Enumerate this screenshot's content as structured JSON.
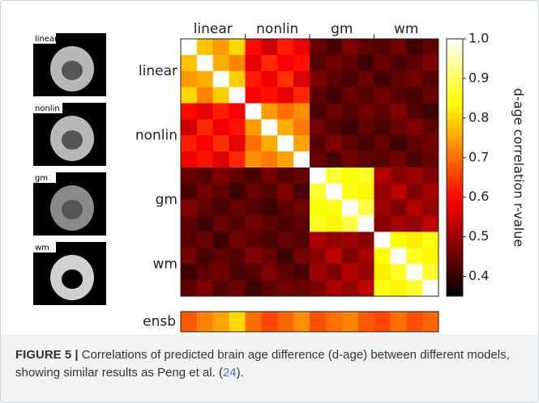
{
  "chart_data": {
    "type": "heatmap",
    "colormap": "hot",
    "group_labels": [
      "linear",
      "nonlin",
      "gm",
      "wm"
    ],
    "matrix": [
      [
        1.0,
        0.78,
        0.74,
        0.8,
        0.6,
        0.55,
        0.62,
        0.58,
        0.45,
        0.42,
        0.47,
        0.44,
        0.43,
        0.46,
        0.41,
        0.44
      ],
      [
        0.78,
        1.0,
        0.76,
        0.72,
        0.57,
        0.63,
        0.59,
        0.61,
        0.43,
        0.46,
        0.44,
        0.41,
        0.45,
        0.42,
        0.44,
        0.47
      ],
      [
        0.74,
        0.76,
        1.0,
        0.79,
        0.62,
        0.58,
        0.64,
        0.56,
        0.47,
        0.44,
        0.42,
        0.45,
        0.41,
        0.44,
        0.46,
        0.43
      ],
      [
        0.8,
        0.72,
        0.79,
        1.0,
        0.59,
        0.61,
        0.57,
        0.63,
        0.44,
        0.41,
        0.45,
        0.43,
        0.46,
        0.43,
        0.42,
        0.45
      ],
      [
        0.6,
        0.57,
        0.62,
        0.59,
        1.0,
        0.74,
        0.7,
        0.73,
        0.42,
        0.45,
        0.43,
        0.46,
        0.44,
        0.47,
        0.43,
        0.41
      ],
      [
        0.55,
        0.63,
        0.58,
        0.61,
        0.74,
        1.0,
        0.76,
        0.71,
        0.46,
        0.43,
        0.41,
        0.44,
        0.42,
        0.45,
        0.47,
        0.44
      ],
      [
        0.62,
        0.59,
        0.64,
        0.57,
        0.7,
        0.76,
        1.0,
        0.75,
        0.43,
        0.47,
        0.44,
        0.42,
        0.45,
        0.41,
        0.44,
        0.46
      ],
      [
        0.58,
        0.61,
        0.56,
        0.63,
        0.73,
        0.71,
        0.75,
        1.0,
        0.45,
        0.42,
        0.46,
        0.44,
        0.43,
        0.46,
        0.42,
        0.45
      ],
      [
        0.45,
        0.43,
        0.47,
        0.44,
        0.42,
        0.46,
        0.43,
        0.45,
        1.0,
        0.87,
        0.84,
        0.86,
        0.52,
        0.48,
        0.5,
        0.47
      ],
      [
        0.42,
        0.46,
        0.44,
        0.41,
        0.45,
        0.43,
        0.47,
        0.42,
        0.87,
        1.0,
        0.85,
        0.83,
        0.49,
        0.53,
        0.47,
        0.51
      ],
      [
        0.47,
        0.44,
        0.42,
        0.45,
        0.43,
        0.41,
        0.44,
        0.46,
        0.84,
        0.85,
        1.0,
        0.88,
        0.5,
        0.47,
        0.52,
        0.49
      ],
      [
        0.44,
        0.41,
        0.45,
        0.43,
        0.46,
        0.44,
        0.42,
        0.44,
        0.86,
        0.83,
        0.88,
        1.0,
        0.48,
        0.51,
        0.49,
        0.53
      ],
      [
        0.43,
        0.45,
        0.41,
        0.46,
        0.44,
        0.42,
        0.45,
        0.43,
        0.52,
        0.49,
        0.5,
        0.48,
        1.0,
        0.84,
        0.82,
        0.85
      ],
      [
        0.46,
        0.42,
        0.44,
        0.43,
        0.47,
        0.45,
        0.41,
        0.46,
        0.48,
        0.53,
        0.47,
        0.51,
        0.84,
        1.0,
        0.86,
        0.83
      ],
      [
        0.41,
        0.44,
        0.46,
        0.42,
        0.43,
        0.47,
        0.44,
        0.42,
        0.5,
        0.47,
        0.52,
        0.49,
        0.82,
        0.86,
        1.0,
        0.87
      ],
      [
        0.44,
        0.47,
        0.43,
        0.45,
        0.41,
        0.44,
        0.46,
        0.45,
        0.47,
        0.51,
        0.49,
        0.53,
        0.85,
        0.83,
        0.87,
        1.0
      ]
    ],
    "ensb_label": "ensb",
    "ensb_values": [
      0.68,
      0.72,
      0.75,
      0.8,
      0.7,
      0.66,
      0.69,
      0.73,
      0.67,
      0.7,
      0.72,
      0.68,
      0.66,
      0.7,
      0.67,
      0.69
    ],
    "zlim": [
      0.35,
      1.0
    ],
    "zticks": [
      0.4,
      0.5,
      0.6,
      0.7,
      0.8,
      0.9,
      {
        "value": 1,
        "label": "1.0"
      }
    ],
    "colorbar_label": "d-age correlation r-value"
  },
  "thumbnails": [
    "linear",
    "nonlin",
    "gm",
    "wm"
  ],
  "caption": {
    "label": "FIGURE 5 |",
    "text": "Correlations of predicted brain age difference (d-age) between different models, showing similar results as Peng et al. (",
    "ref": "24",
    "end": ")."
  }
}
